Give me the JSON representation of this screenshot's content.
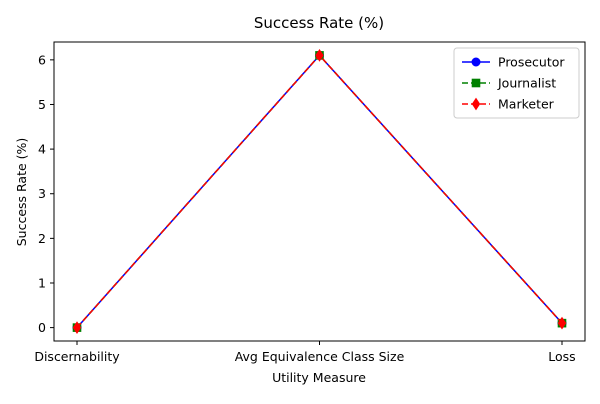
{
  "chart_data": {
    "type": "line",
    "title": "Success Rate (%)",
    "xlabel": "Utility Measure",
    "ylabel": "Success Rate (%)",
    "categories": [
      "Discernability",
      "Avg Equivalence Class Size",
      "Loss"
    ],
    "ylim": [
      -0.3,
      6.4
    ],
    "yticks": [
      0,
      1,
      2,
      3,
      4,
      5,
      6
    ],
    "grid": false,
    "legend_position": "top-right",
    "series": [
      {
        "name": "Prosecutor",
        "values": [
          0.0,
          6.1,
          0.1
        ],
        "color": "#0000ff",
        "marker": "circle",
        "linestyle": "solid"
      },
      {
        "name": "Journalist",
        "values": [
          0.0,
          6.1,
          0.1
        ],
        "color": "#008000",
        "marker": "square",
        "linestyle": "dashed"
      },
      {
        "name": "Marketer",
        "values": [
          0.0,
          6.1,
          0.1
        ],
        "color": "#ff0000",
        "marker": "diamond",
        "linestyle": "dashed"
      }
    ]
  }
}
